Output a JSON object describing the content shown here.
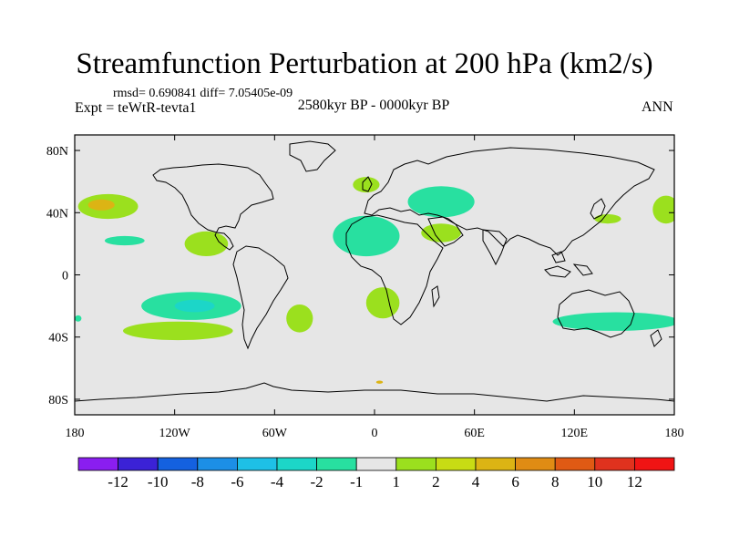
{
  "chart_data": {
    "type": "map-contour",
    "title": "Streamfunction Perturbation at 200 hPa (km2/s)",
    "stats_text": "rmsd= 0.690841 diff= 7.05405e-09",
    "period": "2580kyr BP - 0000kyr BP",
    "experiment": "Expt = teWtR-tevta1",
    "season": "ANN",
    "lon_range": [
      -180,
      180
    ],
    "lat_range": [
      -90,
      90
    ],
    "x_ticks": [
      {
        "value": -180,
        "label": "180"
      },
      {
        "value": -120,
        "label": "120W"
      },
      {
        "value": -60,
        "label": "60W"
      },
      {
        "value": 0,
        "label": "0"
      },
      {
        "value": 60,
        "label": "60E"
      },
      {
        "value": 120,
        "label": "120E"
      },
      {
        "value": 180,
        "label": "180"
      }
    ],
    "y_ticks": [
      {
        "value": 80,
        "label": "80N"
      },
      {
        "value": 40,
        "label": "40N"
      },
      {
        "value": 0,
        "label": "0"
      },
      {
        "value": -40,
        "label": "40S"
      },
      {
        "value": -80,
        "label": "80S"
      }
    ],
    "colorbar": {
      "colors": [
        "#8a1ef0",
        "#3b22d6",
        "#1461e0",
        "#1c8fe6",
        "#1ec0e6",
        "#1cd6c8",
        "#28e0a0",
        "#e6e6e6",
        "#9be01e",
        "#c8dc14",
        "#dcb414",
        "#e08c14",
        "#e05a14",
        "#e0321e",
        "#f01414"
      ],
      "labels": [
        "-12",
        "-10",
        "-8",
        "-6",
        "-4",
        "-2",
        "-1",
        "1",
        "2",
        "4",
        "6",
        "8",
        "10",
        "12"
      ]
    },
    "regions": [
      {
        "lon": -160,
        "lat": 44,
        "rlon": 18,
        "rlat": 8,
        "level": 2
      },
      {
        "lon": -164,
        "lat": 45,
        "rlon": 8,
        "rlat": 3.5,
        "level": 4
      },
      {
        "lon": -150,
        "lat": 22,
        "rlon": 12,
        "rlat": 3,
        "level": 1
      },
      {
        "lon": -101,
        "lat": 20,
        "rlon": 13,
        "rlat": 8,
        "level": 2
      },
      {
        "lon": -110,
        "lat": -20,
        "rlon": 30,
        "rlat": 9,
        "level": 1
      },
      {
        "lon": -108,
        "lat": -20,
        "rlon": 12,
        "rlat": 4,
        "level": -2
      },
      {
        "lon": -118,
        "lat": -36,
        "rlon": 33,
        "rlat": 6,
        "level": 2
      },
      {
        "lon": -45,
        "lat": -28,
        "rlon": 8,
        "rlat": 9,
        "level": 2
      },
      {
        "lon": -178,
        "lat": -28,
        "rlon": 2,
        "rlat": 2,
        "level": 1
      },
      {
        "lon": -5,
        "lat": 25,
        "rlon": 20,
        "rlat": 13,
        "level": 1
      },
      {
        "lon": -5,
        "lat": 58,
        "rlon": 8,
        "rlat": 5,
        "level": 2
      },
      {
        "lon": 40,
        "lat": 47,
        "rlon": 20,
        "rlat": 10,
        "level": 1
      },
      {
        "lon": 40,
        "lat": 27,
        "rlon": 12,
        "rlat": 6,
        "level": 2
      },
      {
        "lon": 5,
        "lat": -18,
        "rlon": 10,
        "rlat": 10,
        "level": 2
      },
      {
        "lon": 140,
        "lat": 36,
        "rlon": 8,
        "rlat": 3,
        "level": 2
      },
      {
        "lon": 175,
        "lat": 42,
        "rlon": 8,
        "rlat": 9,
        "level": 2
      },
      {
        "lon": 145,
        "lat": -30,
        "rlon": 38,
        "rlat": 6,
        "level": 1
      },
      {
        "lon": 3,
        "lat": -69,
        "rlon": 2,
        "rlat": 1,
        "level": 4
      }
    ]
  }
}
